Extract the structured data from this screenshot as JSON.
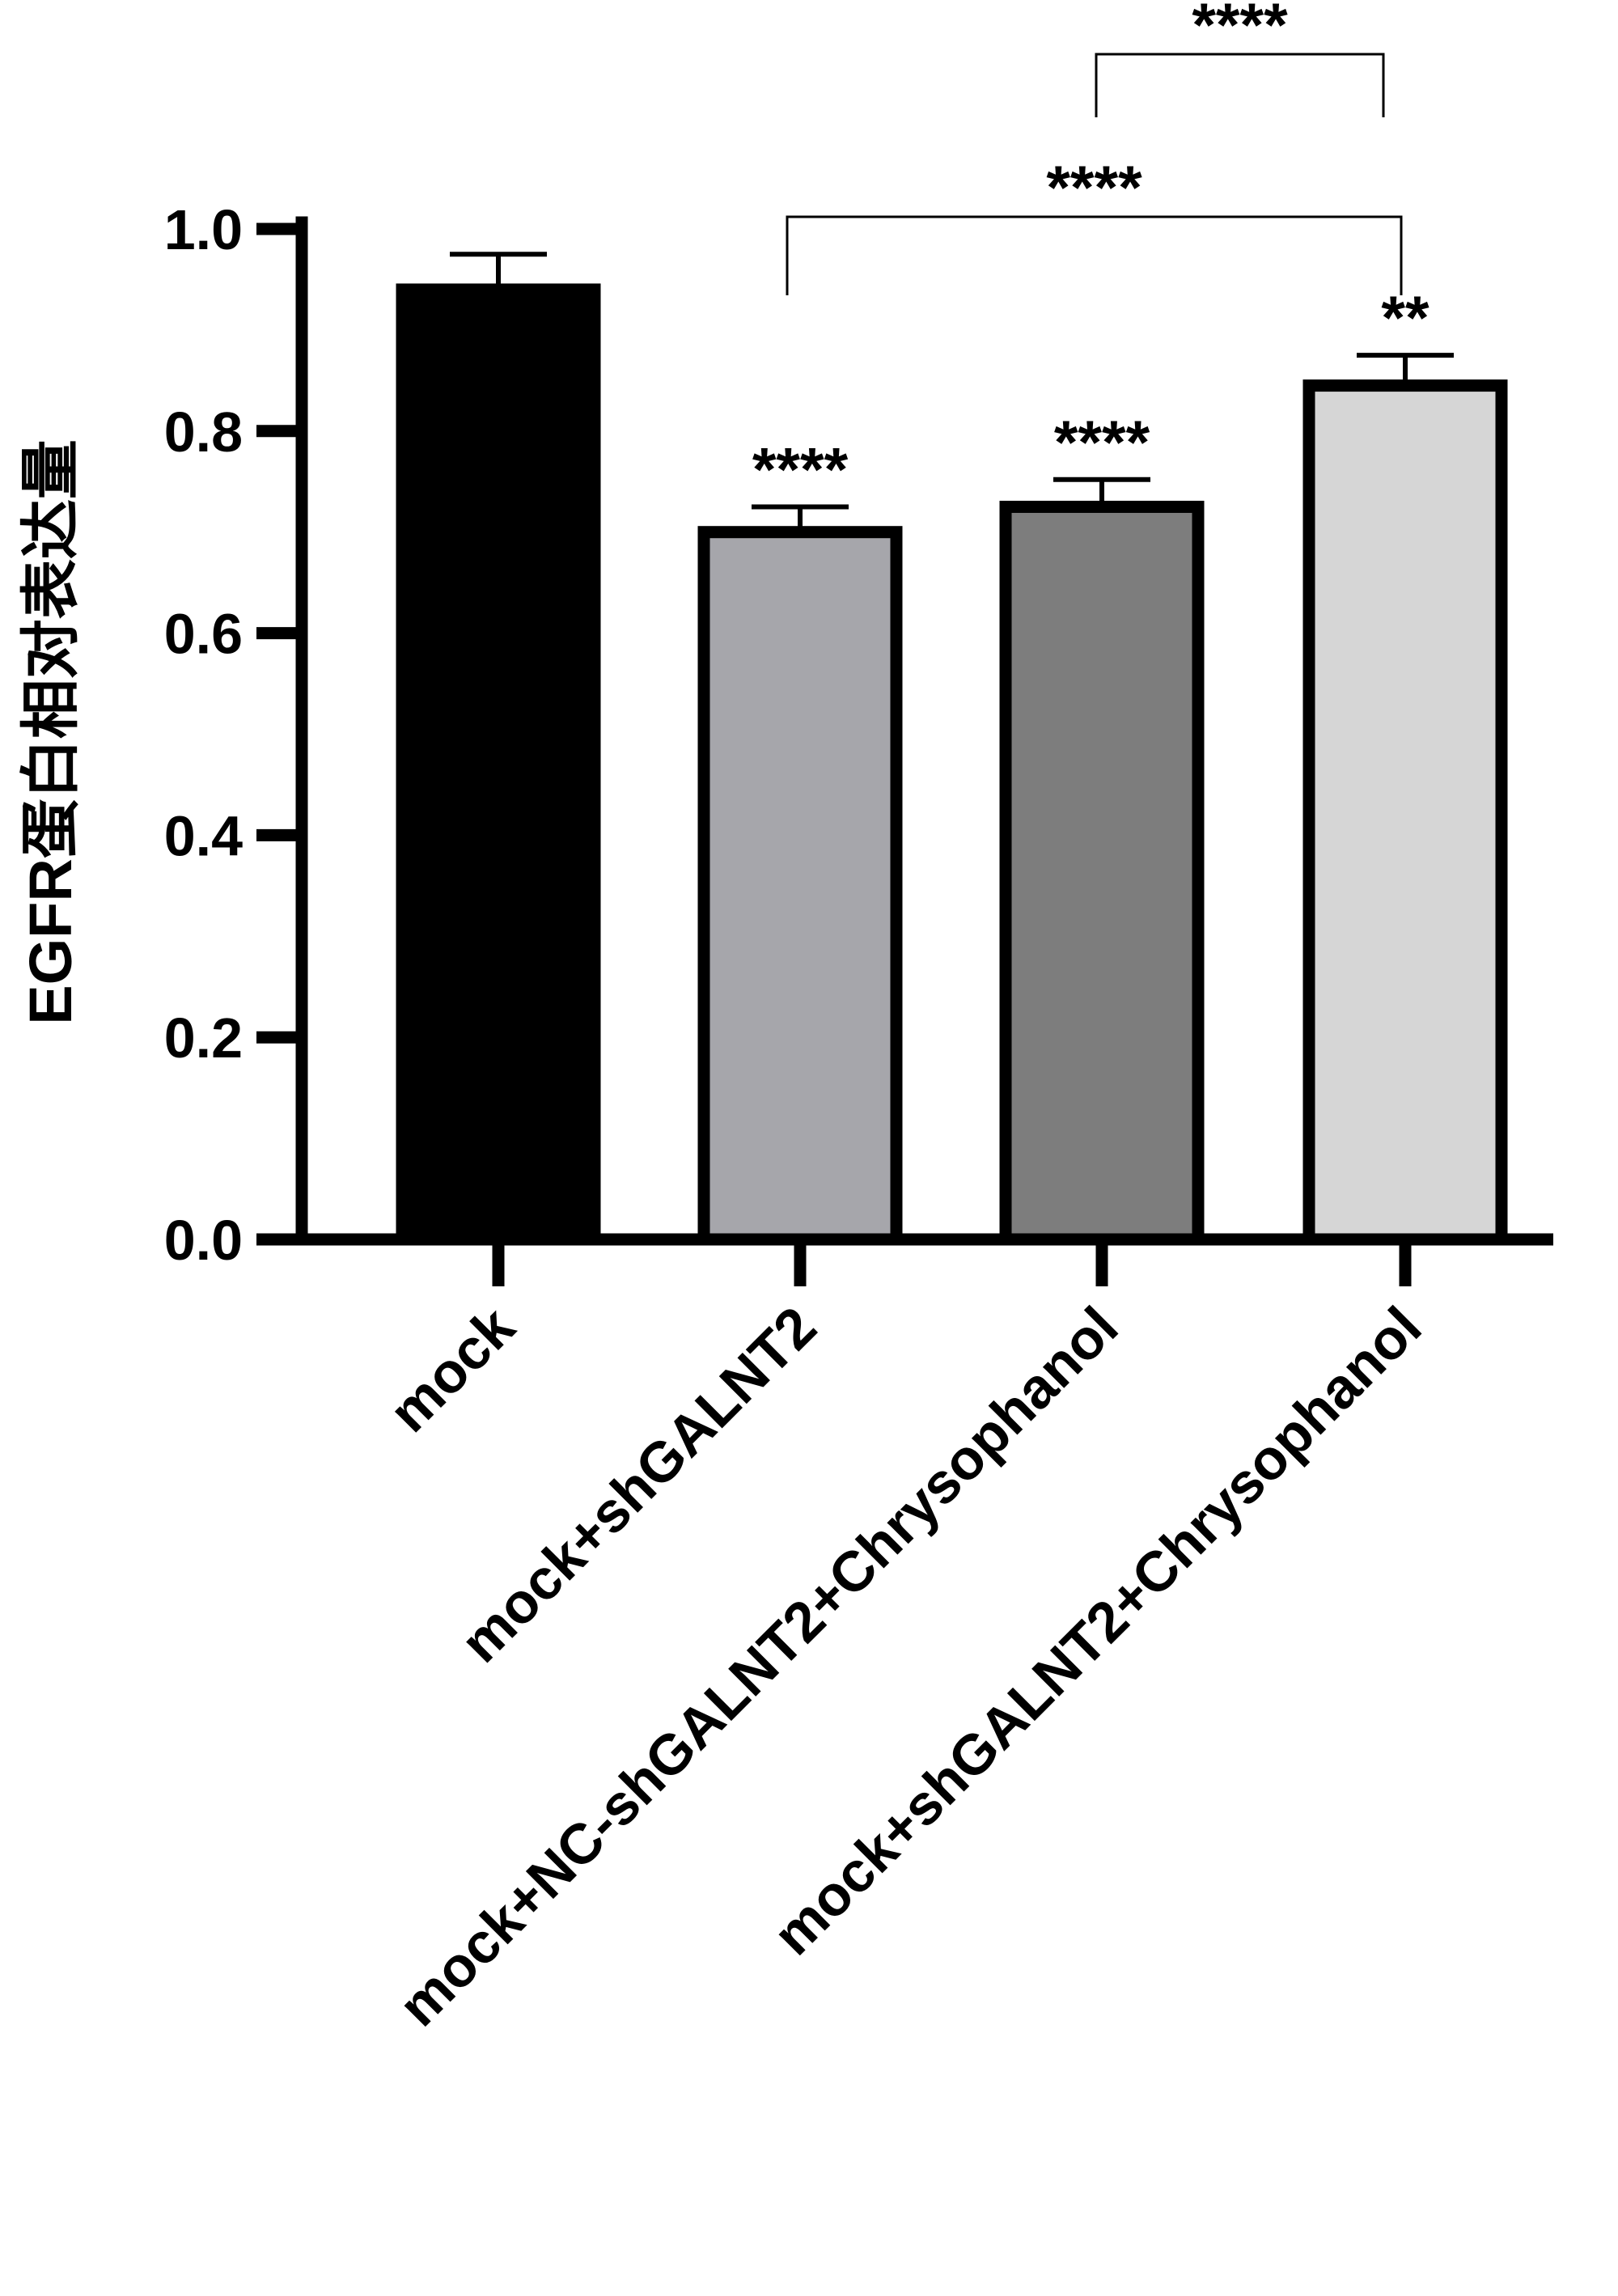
{
  "chart_data": {
    "type": "bar",
    "ylabel": "EGFR蛋白相对表达量",
    "xlabel": "",
    "ylim": [
      0,
      1.0
    ],
    "yticks": [
      "0.0",
      "0.2",
      "0.4",
      "0.6",
      "0.8",
      "1.0"
    ],
    "grid": false,
    "categories": [
      "mock",
      "mock+shGALNT2",
      "mock+NC-shGALNT2+Chrysophanol",
      "mock+shGALNT2+Chrysophanol"
    ],
    "values": [
      0.94,
      0.7,
      0.725,
      0.845
    ],
    "errors": [
      0.035,
      0.025,
      0.027,
      0.03
    ],
    "bar_colors": [
      "#000000",
      "#a6a6ab",
      "#7d7d7d",
      "#d6d6d6"
    ],
    "bar_edge_color": "#000000",
    "bar_annotations": [
      "",
      "****",
      "****",
      "**"
    ],
    "comparisons": [
      {
        "from": 2,
        "to": 3,
        "label": "****"
      },
      {
        "from": 1,
        "to": 3,
        "label": "****"
      }
    ]
  }
}
